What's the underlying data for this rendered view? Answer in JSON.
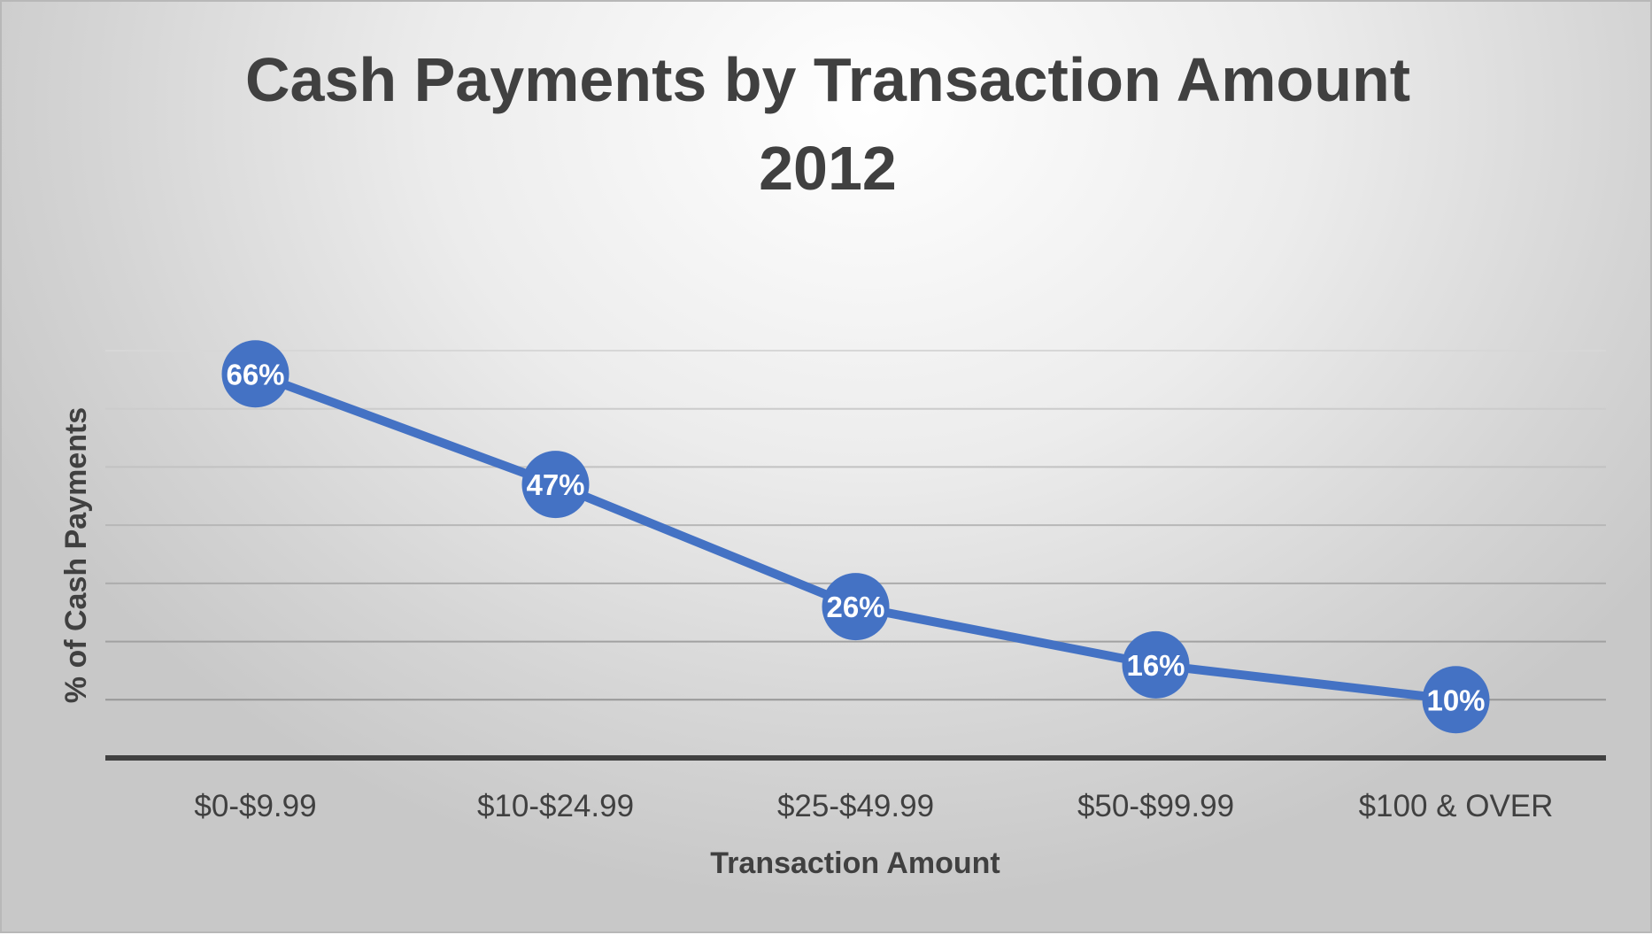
{
  "chart_data": {
    "type": "line",
    "title": [
      "Cash Payments by Transaction Amount",
      "2012"
    ],
    "xlabel": "Transaction Amount",
    "ylabel": "% of Cash Payments",
    "categories": [
      "$0-$9.99",
      "$10-$24.99",
      "$25-$49.99",
      "$50-$99.99",
      "$100 & OVER"
    ],
    "values": [
      66,
      47,
      26,
      16,
      10
    ],
    "data_labels": [
      "66%",
      "47%",
      "26%",
      "16%",
      "10%"
    ],
    "ylim": [
      0,
      70
    ],
    "y_gridline_step": 10,
    "grid": true,
    "legend": "none",
    "colors": {
      "series": "#4472C4",
      "text": "#404040",
      "axis": "#404040"
    }
  }
}
